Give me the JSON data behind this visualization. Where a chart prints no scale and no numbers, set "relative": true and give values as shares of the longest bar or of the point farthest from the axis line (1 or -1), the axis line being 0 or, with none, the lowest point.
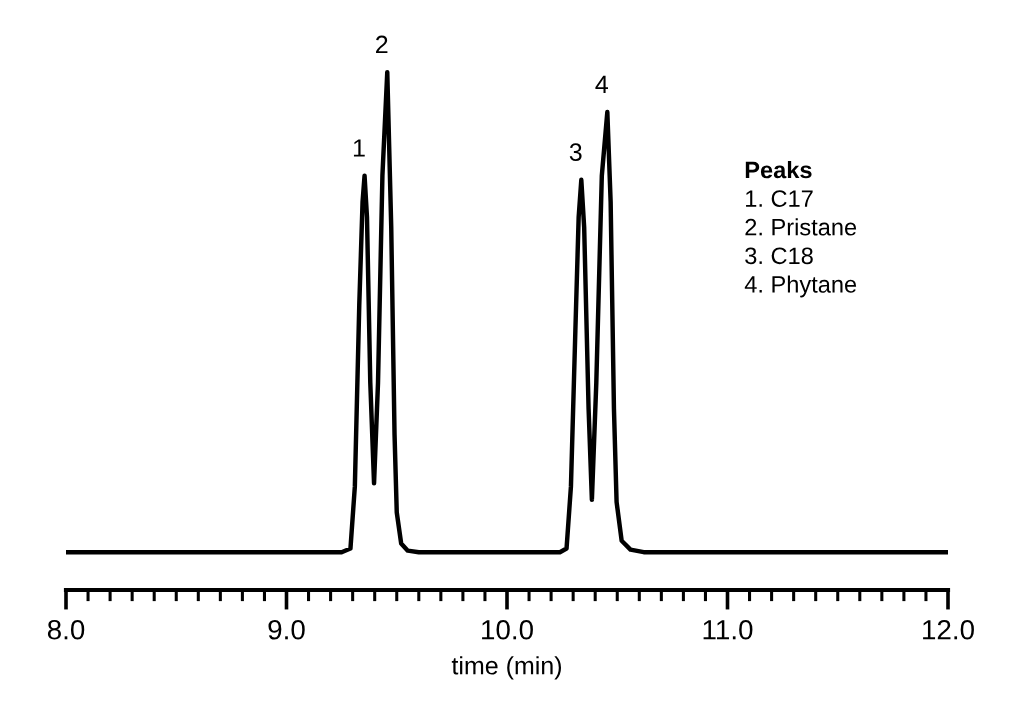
{
  "chart_data": {
    "type": "line",
    "relative": true,
    "xlabel": "time (min)",
    "xlim": [
      8,
      12
    ],
    "xticks": [
      {
        "value": 8,
        "label": "8.0"
      },
      {
        "value": 8.1,
        "label": null
      },
      {
        "value": 8.2,
        "label": null
      },
      {
        "value": 8.3,
        "label": null
      },
      {
        "value": 8.4,
        "label": null
      },
      {
        "value": 8.5,
        "label": null
      },
      {
        "value": 8.6,
        "label": null
      },
      {
        "value": 8.7,
        "label": null
      },
      {
        "value": 8.8,
        "label": null
      },
      {
        "value": 8.9,
        "label": null
      },
      {
        "value": 9,
        "label": "9.0"
      },
      {
        "value": 9.1,
        "label": null
      },
      {
        "value": 9.2,
        "label": null
      },
      {
        "value": 9.3,
        "label": null
      },
      {
        "value": 9.4,
        "label": null
      },
      {
        "value": 9.5,
        "label": null
      },
      {
        "value": 9.6,
        "label": null
      },
      {
        "value": 9.7,
        "label": null
      },
      {
        "value": 9.8,
        "label": null
      },
      {
        "value": 9.9,
        "label": null
      },
      {
        "value": 10,
        "label": "10.0"
      },
      {
        "value": 10.1,
        "label": null
      },
      {
        "value": 10.2,
        "label": null
      },
      {
        "value": 10.3,
        "label": null
      },
      {
        "value": 10.4,
        "label": null
      },
      {
        "value": 10.5,
        "label": null
      },
      {
        "value": 10.6,
        "label": null
      },
      {
        "value": 10.7,
        "label": null
      },
      {
        "value": 10.8,
        "label": null
      },
      {
        "value": 10.9,
        "label": null
      },
      {
        "value": 11,
        "label": "11.0"
      },
      {
        "value": 11.1,
        "label": null
      },
      {
        "value": 11.2,
        "label": null
      },
      {
        "value": 11.3,
        "label": null
      },
      {
        "value": 11.4,
        "label": null
      },
      {
        "value": 11.5,
        "label": null
      },
      {
        "value": 11.6,
        "label": null
      },
      {
        "value": 11.7,
        "label": null
      },
      {
        "value": 11.8,
        "label": null
      },
      {
        "value": 11.9,
        "label": null
      },
      {
        "value": 12,
        "label": "12.0"
      }
    ],
    "tick_labels": "x",
    "grid": false,
    "legend": false,
    "marker": "none",
    "line_style": "solid",
    "series": [
      {
        "color": "#000000",
        "x": [
          8.0,
          9.25,
          9.29,
          9.31,
          9.33,
          9.345,
          9.354,
          9.365,
          9.38,
          9.397,
          9.415,
          9.435,
          9.457,
          9.475,
          9.49,
          9.5,
          9.52,
          9.55,
          9.6,
          10.24,
          10.27,
          10.29,
          10.31,
          10.325,
          10.337,
          10.35,
          10.37,
          10.385,
          10.405,
          10.43,
          10.455,
          10.47,
          10.485,
          10.497,
          10.52,
          10.56,
          10.62,
          12.0
        ],
        "values": [
          0.073,
          0.073,
          0.08,
          0.2,
          0.55,
          0.75,
          0.8,
          0.72,
          0.4,
          0.206,
          0.4,
          0.8,
          1.0,
          0.7,
          0.3,
          0.15,
          0.09,
          0.076,
          0.073,
          0.073,
          0.08,
          0.2,
          0.5,
          0.72,
          0.792,
          0.7,
          0.35,
          0.174,
          0.4,
          0.8,
          0.923,
          0.75,
          0.35,
          0.17,
          0.095,
          0.078,
          0.073,
          0.073
        ]
      }
    ],
    "annotations": [
      {
        "text": "1",
        "x": 9.354,
        "y": 0.8
      },
      {
        "text": "2",
        "x": 9.457,
        "y": 1.0
      },
      {
        "text": "3",
        "x": 10.337,
        "y": 0.792
      },
      {
        "text": "4",
        "x": 10.455,
        "y": 0.923
      },
      "Peaks",
      "1. C17",
      "2. Pristane",
      "3. C18",
      "4. Phytane"
    ]
  }
}
